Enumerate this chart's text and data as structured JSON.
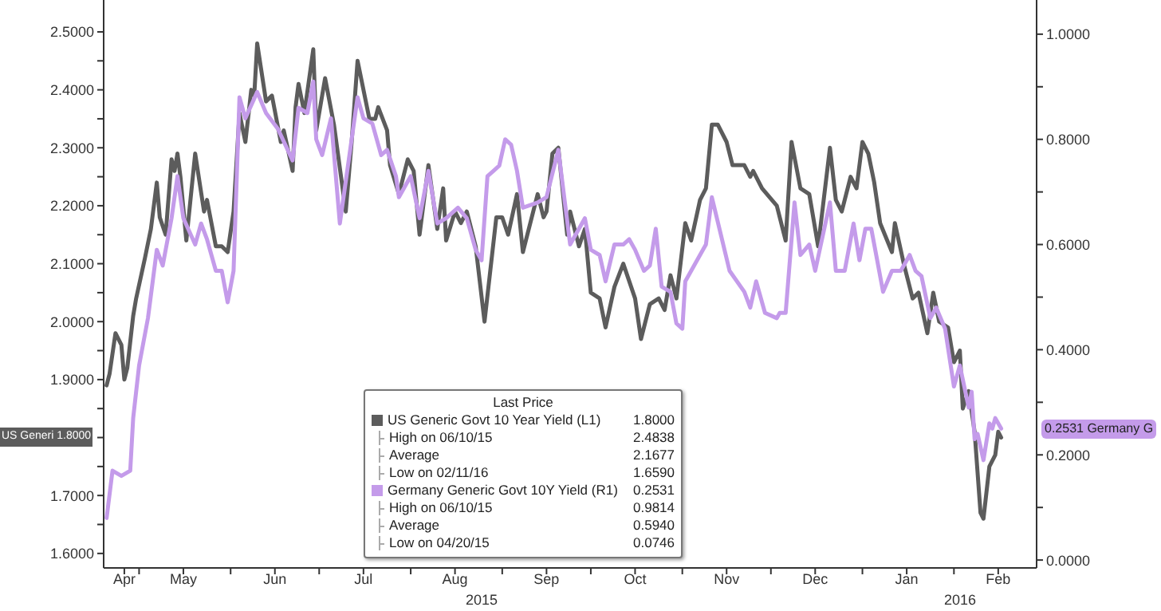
{
  "chart_data": {
    "type": "line",
    "legend": "bottom",
    "legend_title": "Last Price",
    "marker": "none",
    "line_style": "solid",
    "xlim": [
      "2015-04-19",
      "2016-02-29"
    ],
    "xticks": [
      {
        "value": "2015-04-26",
        "label": "Apr"
      },
      {
        "value": "2015-05-01",
        "label": null
      },
      {
        "value": "2015-05-16",
        "label": "May"
      },
      {
        "value": "2015-06-01",
        "label": null
      },
      {
        "value": "2015-06-16",
        "label": "Jun"
      },
      {
        "value": "2015-07-01",
        "label": null
      },
      {
        "value": "2015-07-16",
        "label": "Jul"
      },
      {
        "value": "2015-08-01",
        "label": null
      },
      {
        "value": "2015-08-16",
        "label": "Aug"
      },
      {
        "value": "2015-09-01",
        "label": null
      },
      {
        "value": "2015-09-16",
        "label": "Sep"
      },
      {
        "value": "2015-10-01",
        "label": null
      },
      {
        "value": "2015-10-16",
        "label": "Oct"
      },
      {
        "value": "2015-11-01",
        "label": null
      },
      {
        "value": "2015-11-16",
        "label": "Nov"
      },
      {
        "value": "2015-12-01",
        "label": null
      },
      {
        "value": "2015-12-16",
        "label": "Dec"
      },
      {
        "value": "2016-01-01",
        "label": null
      },
      {
        "value": "2016-01-16",
        "label": "Jan"
      },
      {
        "value": "2016-02-01",
        "label": null
      },
      {
        "value": "2016-02-16",
        "label": "Feb"
      }
    ],
    "ylim": [
      1.575,
      2.555
    ],
    "yticks": [
      {
        "value": 1.6,
        "label": "1.6000"
      },
      {
        "value": 1.65,
        "label": null
      },
      {
        "value": 1.7,
        "label": "1.7000"
      },
      {
        "value": 1.75,
        "label": null
      },
      {
        "value": 1.8,
        "label": null
      },
      {
        "value": 1.85,
        "label": null
      },
      {
        "value": 1.9,
        "label": "1.9000"
      },
      {
        "value": 1.95,
        "label": null
      },
      {
        "value": 2.0,
        "label": "2.0000"
      },
      {
        "value": 2.05,
        "label": null
      },
      {
        "value": 2.1,
        "label": "2.1000"
      },
      {
        "value": 2.15,
        "label": null
      },
      {
        "value": 2.2,
        "label": "2.2000"
      },
      {
        "value": 2.25,
        "label": null
      },
      {
        "value": 2.3,
        "label": "2.3000"
      },
      {
        "value": 2.35,
        "label": null
      },
      {
        "value": 2.4,
        "label": "2.4000"
      },
      {
        "value": 2.45,
        "label": null
      },
      {
        "value": 2.5,
        "label": "2.5000"
      }
    ],
    "y2lim": [
      -0.015,
      1.065
    ],
    "y2ticks": [
      {
        "value": 0,
        "label": "0.0000"
      },
      {
        "value": 0.1,
        "label": null
      },
      {
        "value": 0.2,
        "label": "0.2000"
      },
      {
        "value": 0.3,
        "label": null
      },
      {
        "value": 0.4,
        "label": "0.4000"
      },
      {
        "value": 0.5,
        "label": null
      },
      {
        "value": 0.6,
        "label": "0.6000"
      },
      {
        "value": 0.7,
        "label": null
      },
      {
        "value": 0.8,
        "label": "0.8000"
      },
      {
        "value": 0.9,
        "label": null
      },
      {
        "value": 1.0,
        "label": "1.0000"
      }
    ],
    "annotations": [
      "1.8000",
      "High on 06/10/15 2.4838",
      "Average 2.1677",
      "Low on 02/11/16 1.6590",
      "0.2531",
      "High on 06/10/15 0.9814",
      "Average 0.5940",
      "Low on 04/20/15 0.0746",
      "2015",
      "2016",
      "US Generi 1.8000",
      "0.2531 Germany G"
    ],
    "series": [
      {
        "name": "US Generic Govt 10 Year Yield (L1)",
        "color": "#5c5c5c",
        "x": [
          "2015-04-20",
          "2015-04-21",
          "2015-04-23",
          "2015-04-25",
          "2015-04-26",
          "2015-04-27",
          "2015-04-29",
          "2015-04-30",
          "2015-05-03",
          "2015-05-05",
          "2015-05-07",
          "2015-05-08",
          "2015-05-10",
          "2015-05-12",
          "2015-05-13",
          "2015-05-14",
          "2015-05-15",
          "2015-05-17",
          "2015-05-20",
          "2015-05-23",
          "2015-05-24",
          "2015-05-27",
          "2015-05-29",
          "2015-05-31",
          "2015-06-02",
          "2015-06-04",
          "2015-06-06",
          "2015-06-08",
          "2015-06-09",
          "2015-06-10",
          "2015-06-13",
          "2015-06-15",
          "2015-06-18",
          "2015-06-19",
          "2015-06-22",
          "2015-06-23",
          "2015-06-24",
          "2015-06-26",
          "2015-06-29",
          "2015-06-30",
          "2015-07-03",
          "2015-07-06",
          "2015-07-10",
          "2015-07-12",
          "2015-07-14",
          "2015-07-18",
          "2015-07-20",
          "2015-07-21",
          "2015-07-24",
          "2015-07-25",
          "2015-07-28",
          "2015-07-31",
          "2015-08-02",
          "2015-08-04",
          "2015-08-07",
          "2015-08-10",
          "2015-08-12",
          "2015-08-13",
          "2015-08-16",
          "2015-08-18",
          "2015-08-20",
          "2015-08-23",
          "2015-08-26",
          "2015-08-30",
          "2015-09-01",
          "2015-09-03",
          "2015-09-06",
          "2015-09-08",
          "2015-09-13",
          "2015-09-15",
          "2015-09-16",
          "2015-09-18",
          "2015-09-20",
          "2015-09-22",
          "2015-09-23",
          "2015-09-24",
          "2015-09-27",
          "2015-09-29",
          "2015-10-01",
          "2015-10-04",
          "2015-10-06",
          "2015-10-09",
          "2015-10-12",
          "2015-10-16",
          "2015-10-18",
          "2015-10-21",
          "2015-10-24",
          "2015-10-26",
          "2015-10-28",
          "2015-10-30",
          "2015-11-02",
          "2015-11-04",
          "2015-11-07",
          "2015-11-09",
          "2015-11-11",
          "2015-11-13",
          "2015-11-16",
          "2015-11-18",
          "2015-11-22",
          "2015-11-24",
          "2015-11-25",
          "2015-11-28",
          "2015-12-03",
          "2015-12-06",
          "2015-12-08",
          "2015-12-11",
          "2015-12-14",
          "2015-12-17",
          "2015-12-21",
          "2015-12-23",
          "2015-12-25",
          "2015-12-28",
          "2015-12-30",
          "2016-01-01",
          "2016-01-03",
          "2016-01-05",
          "2016-01-07",
          "2016-01-11",
          "2016-01-12",
          "2016-01-15",
          "2016-01-18",
          "2016-01-20",
          "2016-01-23",
          "2016-01-25",
          "2016-01-27",
          "2016-01-30",
          "2016-02-01",
          "2016-02-03",
          "2016-02-04",
          "2016-02-06",
          "2016-02-08",
          "2016-02-09",
          "2016-02-10",
          "2016-02-11",
          "2016-02-13",
          "2016-02-15",
          "2016-02-16",
          "2016-02-17"
        ],
        "values": [
          1.89,
          1.91,
          1.98,
          1.96,
          1.9,
          1.92,
          2.01,
          2.04,
          2.11,
          2.16,
          2.24,
          2.18,
          2.15,
          2.28,
          2.26,
          2.29,
          2.25,
          2.14,
          2.29,
          2.19,
          2.21,
          2.13,
          2.13,
          2.12,
          2.19,
          2.36,
          2.31,
          2.4,
          2.39,
          2.48,
          2.38,
          2.39,
          2.31,
          2.33,
          2.26,
          2.37,
          2.41,
          2.36,
          2.47,
          2.33,
          2.42,
          2.34,
          2.19,
          2.31,
          2.45,
          2.35,
          2.35,
          2.37,
          2.33,
          2.27,
          2.22,
          2.28,
          2.26,
          2.15,
          2.27,
          2.16,
          2.23,
          2.14,
          2.19,
          2.17,
          2.19,
          2.13,
          2.0,
          2.18,
          2.18,
          2.15,
          2.22,
          2.12,
          2.22,
          2.18,
          2.19,
          2.29,
          2.3,
          2.2,
          2.15,
          2.19,
          2.13,
          2.16,
          2.05,
          2.04,
          1.99,
          2.06,
          2.1,
          2.04,
          1.97,
          2.03,
          2.04,
          2.02,
          2.08,
          2.04,
          2.17,
          2.14,
          2.21,
          2.23,
          2.34,
          2.34,
          2.31,
          2.27,
          2.27,
          2.25,
          2.26,
          2.23,
          2.2,
          2.14,
          2.31,
          2.23,
          2.22,
          2.13,
          2.3,
          2.21,
          2.19,
          2.25,
          2.23,
          2.31,
          2.29,
          2.24,
          2.17,
          2.12,
          2.17,
          2.1,
          2.04,
          2.05,
          1.98,
          2.05,
          2.0,
          1.99,
          1.93,
          1.95,
          1.85,
          1.88,
          1.81,
          1.74,
          1.67,
          1.66,
          1.75,
          1.77,
          1.81,
          1.8
        ]
      },
      {
        "name": "Germany Generic Govt 10Y Yield (R1)",
        "color": "#c49bea",
        "axis": "y2",
        "x": [
          "2015-04-20",
          "2015-04-22",
          "2015-04-25",
          "2015-04-28",
          "2015-04-29",
          "2015-05-01",
          "2015-05-04",
          "2015-05-07",
          "2015-05-09",
          "2015-05-12",
          "2015-05-14",
          "2015-05-16",
          "2015-05-20",
          "2015-05-22",
          "2015-05-24",
          "2015-05-27",
          "2015-05-29",
          "2015-05-31",
          "2015-06-02",
          "2015-06-04",
          "2015-06-06",
          "2015-06-10",
          "2015-06-13",
          "2015-06-17",
          "2015-06-22",
          "2015-06-24",
          "2015-06-27",
          "2015-06-29",
          "2015-06-30",
          "2015-07-02",
          "2015-07-05",
          "2015-07-08",
          "2015-07-12",
          "2015-07-14",
          "2015-07-16",
          "2015-07-19",
          "2015-07-22",
          "2015-07-24",
          "2015-07-27",
          "2015-07-28",
          "2015-08-01",
          "2015-08-04",
          "2015-08-07",
          "2015-08-10",
          "2015-08-13",
          "2015-08-17",
          "2015-08-20",
          "2015-08-23",
          "2015-08-25",
          "2015-08-27",
          "2015-08-29",
          "2015-08-31",
          "2015-09-02",
          "2015-09-04",
          "2015-09-06",
          "2015-09-08",
          "2015-09-13",
          "2015-09-16",
          "2015-09-20",
          "2015-09-22",
          "2015-09-24",
          "2015-09-29",
          "2015-10-01",
          "2015-10-04",
          "2015-10-06",
          "2015-10-09",
          "2015-10-12",
          "2015-10-14",
          "2015-10-16",
          "2015-10-19",
          "2015-10-21",
          "2015-10-23",
          "2015-10-25",
          "2015-10-28",
          "2015-10-30",
          "2015-11-01",
          "2015-11-02",
          "2015-11-06",
          "2015-11-09",
          "2015-11-11",
          "2015-11-14",
          "2015-11-17",
          "2015-11-22",
          "2015-11-24",
          "2015-11-26",
          "2015-11-29",
          "2015-12-03",
          "2015-12-04",
          "2015-12-06",
          "2015-12-09",
          "2015-12-11",
          "2015-12-14",
          "2015-12-16",
          "2015-12-21",
          "2015-12-23",
          "2015-12-26",
          "2015-12-29",
          "2015-12-31",
          "2016-01-02",
          "2016-01-04",
          "2016-01-06",
          "2016-01-08",
          "2016-01-11",
          "2016-01-14",
          "2016-01-17",
          "2016-01-19",
          "2016-01-21",
          "2016-01-24",
          "2016-01-26",
          "2016-01-29",
          "2016-02-01",
          "2016-02-03",
          "2016-02-06",
          "2016-02-07",
          "2016-02-08",
          "2016-02-09",
          "2016-02-11",
          "2016-02-13",
          "2016-02-14",
          "2016-02-15",
          "2016-02-17"
        ],
        "values": [
          0.08,
          0.17,
          0.16,
          0.17,
          0.27,
          0.37,
          0.46,
          0.59,
          0.56,
          0.65,
          0.73,
          0.65,
          0.6,
          0.64,
          0.61,
          0.55,
          0.55,
          0.49,
          0.55,
          0.88,
          0.84,
          0.89,
          0.85,
          0.82,
          0.76,
          0.86,
          0.85,
          0.91,
          0.8,
          0.77,
          0.84,
          0.64,
          0.8,
          0.88,
          0.84,
          0.83,
          0.77,
          0.78,
          0.73,
          0.69,
          0.73,
          0.65,
          0.74,
          0.64,
          0.65,
          0.67,
          0.65,
          0.59,
          0.57,
          0.73,
          0.74,
          0.75,
          0.8,
          0.79,
          0.74,
          0.67,
          0.68,
          0.69,
          0.78,
          0.69,
          0.6,
          0.65,
          0.59,
          0.58,
          0.53,
          0.6,
          0.6,
          0.61,
          0.59,
          0.55,
          0.56,
          0.63,
          0.52,
          0.51,
          0.45,
          0.44,
          0.53,
          0.57,
          0.6,
          0.69,
          0.62,
          0.55,
          0.51,
          0.48,
          0.53,
          0.47,
          0.46,
          0.47,
          0.47,
          0.68,
          0.58,
          0.6,
          0.55,
          0.68,
          0.55,
          0.55,
          0.64,
          0.57,
          0.63,
          0.63,
          0.57,
          0.51,
          0.55,
          0.55,
          0.58,
          0.55,
          0.54,
          0.46,
          0.48,
          0.44,
          0.33,
          0.37,
          0.29,
          0.32,
          0.23,
          0.24,
          0.19,
          0.26,
          0.25,
          0.27,
          0.25
        ]
      }
    ]
  }
}
